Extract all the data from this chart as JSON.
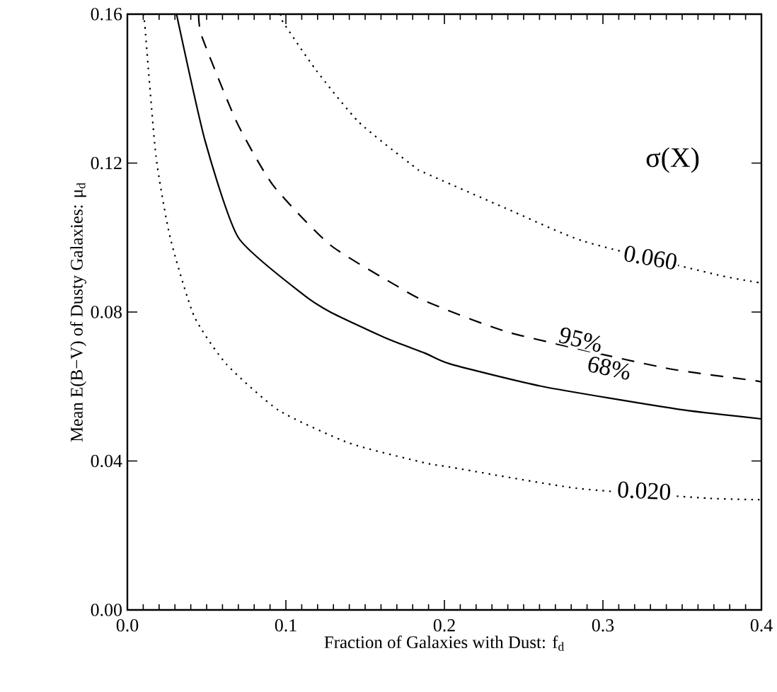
{
  "chart_data": {
    "type": "line",
    "xlabel": "Fraction of Galaxies with Dust: f$_{d}$",
    "ylabel": "Mean E(B−V) of Dusty Galaxies: μ$_{d}$",
    "xlim": [
      0.0,
      0.4
    ],
    "ylim": [
      0.0,
      0.16
    ],
    "xticks": [
      {
        "value": 0.0,
        "label": "0.0"
      },
      0.1,
      0.2,
      0.3,
      {
        "value": 0.4,
        "label": "0.4"
      }
    ],
    "yticks": [
      {
        "value": 0.0,
        "label": "0.00"
      },
      0.04,
      0.08,
      0.12,
      0.16
    ],
    "marker": "none",
    "series": [
      {
        "color": "#000000",
        "line_style": "dotted",
        "x": [
          0.01,
          0.011,
          0.018,
          0.027,
          0.042,
          0.0625,
          0.0955,
          0.14,
          0.1875,
          0.203,
          0.283,
          0.366,
          0.4
        ],
        "values": [
          0.16,
          0.157,
          0.122,
          0.1,
          0.079,
          0.066,
          0.0536,
          0.0448,
          0.0395,
          0.0384,
          0.0327,
          0.03,
          0.0296
        ]
      },
      {
        "color": "#000000",
        "line_style": "solid",
        "x": [
          0.031,
          0.049,
          0.07,
          0.11,
          0.128,
          0.163,
          0.1875,
          0.204,
          0.262,
          0.346,
          0.4
        ],
        "values": [
          0.16,
          0.126,
          0.1,
          0.085,
          0.08,
          0.073,
          0.069,
          0.066,
          0.06,
          0.054,
          0.0513
        ]
      },
      {
        "color": "#000000",
        "line_style": "dashed",
        "x": [
          0.045,
          0.047,
          0.069,
          0.092,
          0.128,
          0.17,
          0.1875,
          0.241,
          0.339,
          0.397,
          0.4
        ],
        "values": [
          0.16,
          0.154,
          0.131,
          0.114,
          0.098,
          0.087,
          0.083,
          0.0745,
          0.065,
          0.0615,
          0.061
        ]
      },
      {
        "color": "#000000",
        "line_style": "dotted",
        "x": [
          0.097,
          0.098,
          0.119,
          0.146,
          0.181,
          0.1875,
          0.238,
          0.288,
          0.372,
          0.4
        ],
        "values": [
          0.16,
          0.158,
          0.145,
          0.131,
          0.119,
          0.1174,
          0.108,
          0.099,
          0.09,
          0.0878
        ]
      }
    ],
    "annotations": [
      "σ(X)",
      {
        "text": "0.060",
        "x": 0.33,
        "y": 0.0946
      },
      {
        "text": "95%",
        "x": 0.286,
        "y": 0.0726
      },
      {
        "text": "68%",
        "x": 0.304,
        "y": 0.065
      },
      {
        "text": "0.020",
        "x": 0.326,
        "y": 0.032
      }
    ]
  }
}
